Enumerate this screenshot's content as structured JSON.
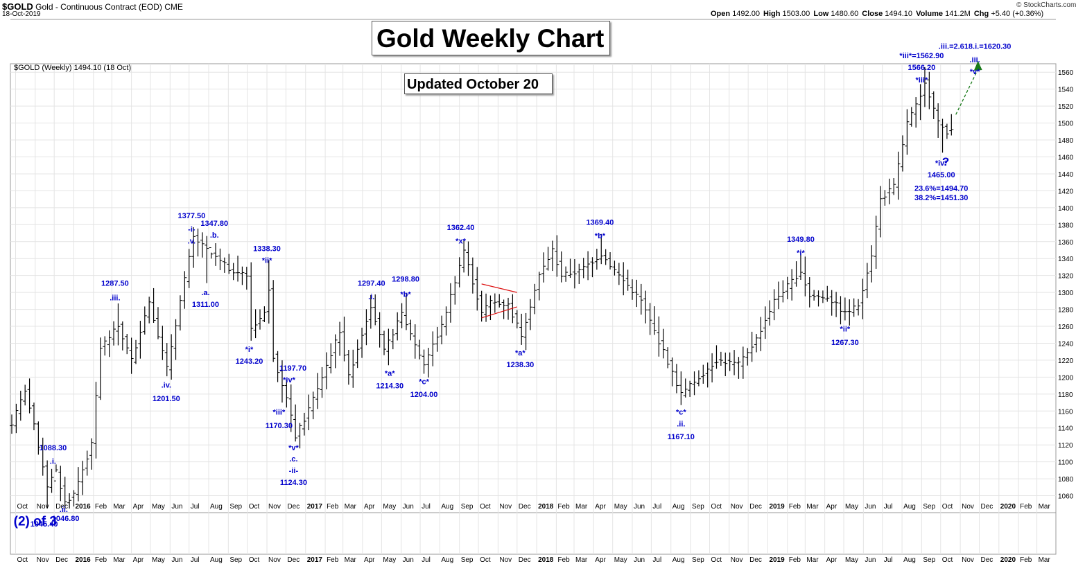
{
  "header": {
    "symbol": "$GOLD",
    "description": "Gold - Continuous Contract (EOD)",
    "exchange": "CME",
    "date": "18-Oct-2019",
    "brand": "© StockCharts.com",
    "caption": "$GOLD (Weekly) 1494.10 (18 Oct)",
    "ohlc": {
      "open_label": "Open",
      "open": "1492.00",
      "high_label": "High",
      "high": "1503.00",
      "low_label": "Low",
      "low": "1480.60",
      "close_label": "Close",
      "close": "1494.10",
      "volume_label": "Volume",
      "volume": "141.2M",
      "chg_label": "Chg",
      "chg": "+5.40 (+0.36%)"
    }
  },
  "titles": {
    "main": "Gold Weekly Chart",
    "updated": "Updated October 20"
  },
  "chart_data": {
    "type": "ohlc-weekly",
    "y_axis": {
      "min": 1040,
      "max": 1570,
      "ticks": [
        1060,
        1080,
        1100,
        1120,
        1140,
        1160,
        1180,
        1200,
        1220,
        1240,
        1260,
        1280,
        1300,
        1320,
        1340,
        1360,
        1380,
        1400,
        1420,
        1440,
        1460,
        1480,
        1500,
        1520,
        1540,
        1560
      ],
      "side": "right",
      "grid": true
    },
    "x_axis": {
      "start": "2015-09-25",
      "end": "2020-03-31",
      "labels": [
        {
          "text": "Oct",
          "date": "2015-10-01"
        },
        {
          "text": "Nov",
          "date": "2015-11-01"
        },
        {
          "text": "Dec",
          "date": "2015-12-01"
        },
        {
          "text": "2016",
          "date": "2016-01-01",
          "bold": true
        },
        {
          "text": "Feb",
          "date": "2016-02-01"
        },
        {
          "text": "Mar",
          "date": "2016-03-01"
        },
        {
          "text": "Apr",
          "date": "2016-04-01"
        },
        {
          "text": "May",
          "date": "2016-05-01"
        },
        {
          "text": "Jun",
          "date": "2016-06-01"
        },
        {
          "text": "Jul",
          "date": "2016-07-01"
        },
        {
          "text": "Aug",
          "date": "2016-08-01"
        },
        {
          "text": "Sep",
          "date": "2016-09-01"
        },
        {
          "text": "Oct",
          "date": "2016-10-01"
        },
        {
          "text": "Nov",
          "date": "2016-11-01"
        },
        {
          "text": "Dec",
          "date": "2016-12-01"
        },
        {
          "text": "2017",
          "date": "2017-01-01",
          "bold": true
        },
        {
          "text": "Feb",
          "date": "2017-02-01"
        },
        {
          "text": "Mar",
          "date": "2017-03-01"
        },
        {
          "text": "Apr",
          "date": "2017-04-01"
        },
        {
          "text": "May",
          "date": "2017-05-01"
        },
        {
          "text": "Jun",
          "date": "2017-06-01"
        },
        {
          "text": "Jul",
          "date": "2017-07-01"
        },
        {
          "text": "Aug",
          "date": "2017-08-01"
        },
        {
          "text": "Sep",
          "date": "2017-09-01"
        },
        {
          "text": "Oct",
          "date": "2017-10-01"
        },
        {
          "text": "Nov",
          "date": "2017-11-01"
        },
        {
          "text": "Dec",
          "date": "2017-12-01"
        },
        {
          "text": "2018",
          "date": "2018-01-01",
          "bold": true
        },
        {
          "text": "Feb",
          "date": "2018-02-01"
        },
        {
          "text": "Mar",
          "date": "2018-03-01"
        },
        {
          "text": "Apr",
          "date": "2018-04-01"
        },
        {
          "text": "May",
          "date": "2018-05-01"
        },
        {
          "text": "Jun",
          "date": "2018-06-01"
        },
        {
          "text": "Jul",
          "date": "2018-07-01"
        },
        {
          "text": "Aug",
          "date": "2018-08-01"
        },
        {
          "text": "Sep",
          "date": "2018-09-01"
        },
        {
          "text": "Oct",
          "date": "2018-10-01"
        },
        {
          "text": "Nov",
          "date": "2018-11-01"
        },
        {
          "text": "Dec",
          "date": "2018-12-01"
        },
        {
          "text": "2019",
          "date": "2019-01-01",
          "bold": true
        },
        {
          "text": "Feb",
          "date": "2019-02-01"
        },
        {
          "text": "Mar",
          "date": "2019-03-01"
        },
        {
          "text": "Apr",
          "date": "2019-04-01"
        },
        {
          "text": "May",
          "date": "2019-05-01"
        },
        {
          "text": "Jun",
          "date": "2019-06-01"
        },
        {
          "text": "Jul",
          "date": "2019-07-01"
        },
        {
          "text": "Aug",
          "date": "2019-08-01"
        },
        {
          "text": "Sep",
          "date": "2019-09-01"
        },
        {
          "text": "Oct",
          "date": "2019-10-01"
        },
        {
          "text": "Nov",
          "date": "2019-11-01"
        },
        {
          "text": "Dec",
          "date": "2019-12-01"
        },
        {
          "text": "2020",
          "date": "2020-01-01",
          "bold": true
        },
        {
          "text": "Feb",
          "date": "2020-02-01"
        },
        {
          "text": "Mar",
          "date": "2020-03-01"
        }
      ]
    },
    "price_path": [
      [
        "2015-09-25",
        1145
      ],
      [
        "2015-10-16",
        1185
      ],
      [
        "2015-10-30",
        1142
      ],
      [
        "2015-11-20",
        1072
      ],
      [
        "2015-12-04",
        1088
      ],
      [
        "2015-12-18",
        1052
      ],
      [
        "2016-01-01",
        1062
      ],
      [
        "2016-01-29",
        1120
      ],
      [
        "2016-02-12",
        1235
      ],
      [
        "2016-03-11",
        1260
      ],
      [
        "2016-04-01",
        1220
      ],
      [
        "2016-04-29",
        1290
      ],
      [
        "2016-05-27",
        1210
      ],
      [
        "2016-06-17",
        1290
      ],
      [
        "2016-07-08",
        1365
      ],
      [
        "2016-08-05",
        1345
      ],
      [
        "2016-09-02",
        1328
      ],
      [
        "2016-09-30",
        1320
      ],
      [
        "2016-10-07",
        1258
      ],
      [
        "2016-10-28",
        1275
      ],
      [
        "2016-11-04",
        1305
      ],
      [
        "2016-11-11",
        1225
      ],
      [
        "2016-12-02",
        1175
      ],
      [
        "2016-12-16",
        1130
      ],
      [
        "2016-12-30",
        1150
      ],
      [
        "2017-01-27",
        1200
      ],
      [
        "2017-02-24",
        1255
      ],
      [
        "2017-03-10",
        1200
      ],
      [
        "2017-04-14",
        1285
      ],
      [
        "2017-05-05",
        1230
      ],
      [
        "2017-06-02",
        1275
      ],
      [
        "2017-07-07",
        1215
      ],
      [
        "2017-08-04",
        1260
      ],
      [
        "2017-09-08",
        1350
      ],
      [
        "2017-10-06",
        1275
      ],
      [
        "2017-10-20",
        1290
      ],
      [
        "2017-11-17",
        1285
      ],
      [
        "2017-12-08",
        1250
      ],
      [
        "2018-01-05",
        1320
      ],
      [
        "2018-01-26",
        1350
      ],
      [
        "2018-02-09",
        1320
      ],
      [
        "2018-03-09",
        1325
      ],
      [
        "2018-04-13",
        1345
      ],
      [
        "2018-05-11",
        1320
      ],
      [
        "2018-06-15",
        1290
      ],
      [
        "2018-07-20",
        1230
      ],
      [
        "2018-08-17",
        1180
      ],
      [
        "2018-09-14",
        1200
      ],
      [
        "2018-10-12",
        1220
      ],
      [
        "2018-11-16",
        1215
      ],
      [
        "2018-12-14",
        1245
      ],
      [
        "2019-01-11",
        1290
      ],
      [
        "2019-02-22",
        1325
      ],
      [
        "2019-03-08",
        1295
      ],
      [
        "2019-04-05",
        1295
      ],
      [
        "2019-05-03",
        1275
      ],
      [
        "2019-05-24",
        1285
      ],
      [
        "2019-06-14",
        1345
      ],
      [
        "2019-06-28",
        1410
      ],
      [
        "2019-07-19",
        1425
      ],
      [
        "2019-08-09",
        1500
      ],
      [
        "2019-08-30",
        1530
      ],
      [
        "2019-09-06",
        1550
      ],
      [
        "2019-09-27",
        1500
      ],
      [
        "2019-10-11",
        1490
      ],
      [
        "2019-10-18",
        1494.1
      ]
    ],
    "pivots": [
      [
        "2015-10-16",
        1191
      ],
      [
        "2015-11-20",
        1045
      ],
      [
        "2015-12-04",
        1088
      ],
      [
        "2015-12-18",
        1046
      ],
      [
        "2016-03-11",
        1287
      ],
      [
        "2016-05-27",
        1201
      ],
      [
        "2016-07-08",
        1377
      ],
      [
        "2016-07-29",
        1311
      ],
      [
        "2016-08-05",
        1347
      ],
      [
        "2016-10-07",
        1243
      ],
      [
        "2016-11-04",
        1338
      ],
      [
        "2016-11-25",
        1170
      ],
      [
        "2016-12-02",
        1197
      ],
      [
        "2016-12-16",
        1124
      ],
      [
        "2017-04-14",
        1297
      ],
      [
        "2017-05-12",
        1214
      ],
      [
        "2017-06-09",
        1298
      ],
      [
        "2017-07-07",
        1204
      ],
      [
        "2017-09-08",
        1362
      ],
      [
        "2017-12-08",
        1238
      ],
      [
        "2018-04-13",
        1369
      ],
      [
        "2018-08-17",
        1167
      ],
      [
        "2019-02-22",
        1349
      ],
      [
        "2019-05-03",
        1267
      ],
      [
        "2019-09-06",
        1566
      ],
      [
        "2019-10-04",
        1465
      ]
    ],
    "triangle": [
      [
        [
          "2017-10-06",
          1310
        ],
        [
          "2017-12-01",
          1300
        ]
      ],
      [
        [
          "2017-10-06",
          1270
        ],
        [
          "2017-12-01",
          1283
        ]
      ]
    ],
    "projection": [
      [
        "2019-10-25",
        1510
      ],
      [
        "2019-11-29",
        1570
      ]
    ],
    "annotations": [
      {
        "text": "1088.30",
        "date": "2015-11-29",
        "y": 1117
      },
      {
        "text": ".i.",
        "date": "2015-11-29",
        "y": 1101
      },
      {
        "text": "1045.40",
        "date": "2015-11-15",
        "y": 1032,
        "lower": true
      },
      {
        "text": ".ii.",
        "date": "2015-12-16",
        "y": 1040,
        "lower": true
      },
      {
        "text": "1046.80",
        "date": "2015-12-19",
        "y": 1036,
        "lower": true
      },
      {
        "text": "(2) of 3",
        "date": "2015-11-01",
        "y": 1042,
        "big": true,
        "lower": true
      },
      {
        "text": "1287.50",
        "date": "2016-03-06",
        "y": 1311
      },
      {
        "text": ".iii.",
        "date": "2016-03-06",
        "y": 1294
      },
      {
        "text": ".iv.",
        "date": "2016-05-26",
        "y": 1191
      },
      {
        "text": "1201.50",
        "date": "2016-05-26",
        "y": 1175
      },
      {
        "text": "1377.50",
        "date": "2016-07-05",
        "y": 1391
      },
      {
        "text": "-i-",
        "date": "2016-07-05",
        "y": 1375
      },
      {
        "text": ".v.",
        "date": "2016-07-05",
        "y": 1361
      },
      {
        "text": "1347.80",
        "date": "2016-08-10",
        "y": 1382
      },
      {
        "text": ".b.",
        "date": "2016-08-10",
        "y": 1368
      },
      {
        "text": ".a.",
        "date": "2016-07-27",
        "y": 1300
      },
      {
        "text": "1311.00",
        "date": "2016-07-27",
        "y": 1286
      },
      {
        "text": "1338.30",
        "date": "2016-11-01",
        "y": 1352
      },
      {
        "text": "*ii*",
        "date": "2016-11-01",
        "y": 1338
      },
      {
        "text": "*i*",
        "date": "2016-10-04",
        "y": 1233
      },
      {
        "text": "1243.20",
        "date": "2016-10-04",
        "y": 1219
      },
      {
        "text": "1197.70",
        "date": "2016-12-12",
        "y": 1211
      },
      {
        "text": "*iv*",
        "date": "2016-12-06",
        "y": 1197
      },
      {
        "text": "*iii*",
        "date": "2016-11-20",
        "y": 1159
      },
      {
        "text": "1170.30",
        "date": "2016-11-20",
        "y": 1143
      },
      {
        "text": "*v*",
        "date": "2016-12-13",
        "y": 1117
      },
      {
        "text": ".c.",
        "date": "2016-12-13",
        "y": 1104
      },
      {
        "text": "-ii-",
        "date": "2016-12-13",
        "y": 1090
      },
      {
        "text": "1124.30",
        "date": "2016-12-13",
        "y": 1076
      },
      {
        "text": "1297.40",
        "date": "2017-04-15",
        "y": 1311
      },
      {
        "text": ".i.",
        "date": "2017-04-15",
        "y": 1295
      },
      {
        "text": "1298.80",
        "date": "2017-06-08",
        "y": 1316
      },
      {
        "text": "*b*",
        "date": "2017-06-08",
        "y": 1298
      },
      {
        "text": "*a*",
        "date": "2017-05-14",
        "y": 1205
      },
      {
        "text": "1214.30",
        "date": "2017-05-14",
        "y": 1190
      },
      {
        "text": "*c*",
        "date": "2017-07-07",
        "y": 1195
      },
      {
        "text": "1204.00",
        "date": "2017-07-07",
        "y": 1180
      },
      {
        "text": "1362.40",
        "date": "2017-09-03",
        "y": 1377
      },
      {
        "text": "*x*",
        "date": "2017-09-03",
        "y": 1361
      },
      {
        "text": "*a*",
        "date": "2017-12-06",
        "y": 1229
      },
      {
        "text": "1238.30",
        "date": "2017-12-06",
        "y": 1215
      },
      {
        "text": "1369.40",
        "date": "2018-04-11",
        "y": 1383
      },
      {
        "text": "*b*",
        "date": "2018-04-11",
        "y": 1367
      },
      {
        "text": "*c*",
        "date": "2018-08-17",
        "y": 1159
      },
      {
        "text": ".ii.",
        "date": "2018-08-17",
        "y": 1145
      },
      {
        "text": "1167.10",
        "date": "2018-08-17",
        "y": 1130
      },
      {
        "text": "1349.80",
        "date": "2019-02-22",
        "y": 1363
      },
      {
        "text": "*i*",
        "date": "2019-02-22",
        "y": 1347
      },
      {
        "text": "*ii*",
        "date": "2019-05-03",
        "y": 1257
      },
      {
        "text": "1267.30",
        "date": "2019-05-03",
        "y": 1241
      },
      {
        "text": "*iii*=1562.90",
        "date": "2019-09-01",
        "y": 1580
      },
      {
        "text": "1566.20",
        "date": "2019-09-01",
        "y": 1566
      },
      {
        "text": "*iii*",
        "date": "2019-09-01",
        "y": 1551
      },
      {
        "text": ".iii.=2.618.i.=1620.30",
        "date": "2019-11-24",
        "y": 1591
      },
      {
        "text": ".iii.",
        "date": "2019-11-24",
        "y": 1575
      },
      {
        "text": "*v*",
        "date": "2019-11-24",
        "y": 1561
      },
      {
        "text": "*iv*",
        "date": "2019-10-02",
        "y": 1453
      },
      {
        "text": "?",
        "date": "2019-10-09",
        "y": 1453,
        "q": true
      },
      {
        "text": "1465.00",
        "date": "2019-10-02",
        "y": 1439
      },
      {
        "text": "23.6%=1494.70",
        "date": "2019-10-02",
        "y": 1423
      },
      {
        "text": "38.2%=1451.30",
        "date": "2019-10-02",
        "y": 1412
      }
    ],
    "colors": {
      "bars": "#000000",
      "annotation": "#0000cc",
      "triangle": "#dd1111",
      "projection": "#1a7a1a",
      "grid": "#e4e4e4",
      "frame": "#999999"
    }
  }
}
